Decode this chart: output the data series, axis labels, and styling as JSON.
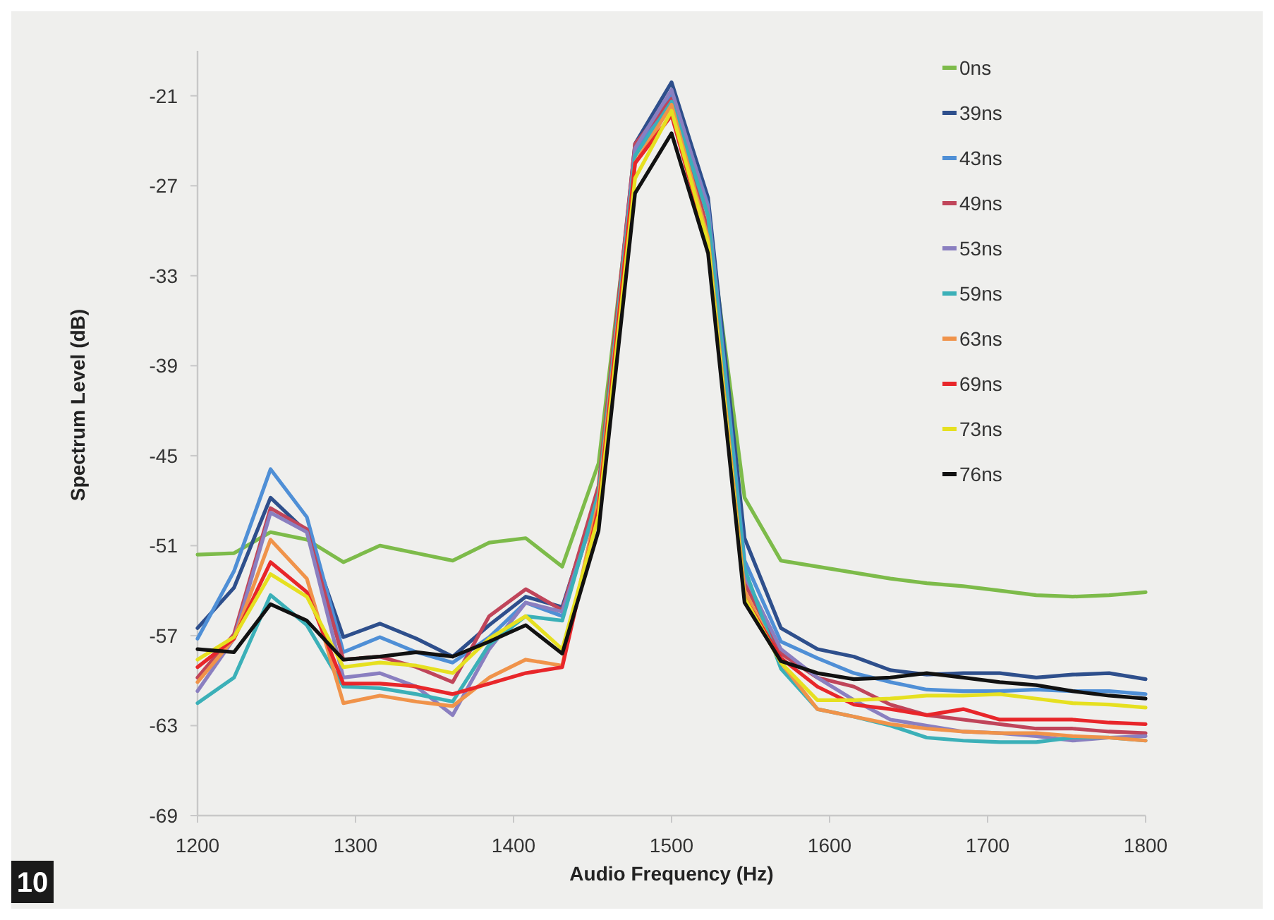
{
  "chart_data": {
    "type": "line",
    "ylabel": "Spectrum Level (dB)",
    "xlabel": "Audio Frequency (Hz)",
    "x": [
      1200,
      1223.1,
      1246.2,
      1269.2,
      1292.3,
      1315.4,
      1338.5,
      1361.5,
      1384.6,
      1407.7,
      1430.8,
      1453.8,
      1476.9,
      1500,
      1523.1,
      1546.2,
      1569.2,
      1592.3,
      1615.4,
      1638.5,
      1661.5,
      1684.6,
      1707.7,
      1730.8,
      1753.8,
      1776.9,
      1800
    ],
    "xlim": [
      1200,
      1800
    ],
    "xticks": [
      1200,
      1300,
      1400,
      1500,
      1600,
      1700,
      1800
    ],
    "ylim": [
      -69,
      -18
    ],
    "yticks": [
      -69,
      -63,
      -57,
      -51,
      -45,
      -39,
      -33,
      -27,
      -21
    ],
    "grid": false,
    "legend": "top right",
    "marker": "none",
    "line_style": "solid",
    "annotations": [
      "10"
    ],
    "series": [
      {
        "name": "0ns",
        "color": "#7dbb4a",
        "values": [
          -51.6,
          -51.5,
          -50.1,
          -50.6,
          -52.1,
          -51.0,
          -51.5,
          -52.0,
          -50.8,
          -50.5,
          -52.4,
          -45.5,
          -25.0,
          -21.0,
          -29.0,
          -47.8,
          -52.0,
          -52.4,
          -52.8,
          -53.2,
          -53.5,
          -53.7,
          -54.0,
          -54.3,
          -54.4,
          -54.3,
          -54.1
        ]
      },
      {
        "name": "39ns",
        "color": "#2e4f8c",
        "values": [
          -56.5,
          -53.8,
          -47.8,
          -50.1,
          -57.1,
          -56.2,
          -57.2,
          -58.4,
          -56.3,
          -54.4,
          -55.1,
          -47.5,
          -24.2,
          -20.1,
          -27.8,
          -50.5,
          -56.5,
          -57.9,
          -58.4,
          -59.3,
          -59.6,
          -59.5,
          -59.5,
          -59.8,
          -59.6,
          -59.5,
          -59.9
        ]
      },
      {
        "name": "43ns",
        "color": "#4f8fd6",
        "values": [
          -57.2,
          -52.7,
          -45.9,
          -49.1,
          -58.1,
          -57.1,
          -58.1,
          -58.8,
          -57.1,
          -54.8,
          -55.7,
          -47.8,
          -24.8,
          -20.9,
          -28.3,
          -52.0,
          -57.4,
          -58.5,
          -59.5,
          -60.1,
          -60.6,
          -60.7,
          -60.7,
          -60.6,
          -60.7,
          -60.7,
          -60.9
        ]
      },
      {
        "name": "49ns",
        "color": "#c0455a",
        "values": [
          -59.8,
          -56.9,
          -48.5,
          -49.9,
          -58.6,
          -58.4,
          -59.1,
          -60.1,
          -55.7,
          -53.9,
          -55.3,
          -47.0,
          -24.2,
          -21.2,
          -30.0,
          -53.5,
          -58.2,
          -59.8,
          -60.4,
          -61.6,
          -62.3,
          -62.6,
          -62.9,
          -63.2,
          -63.2,
          -63.4,
          -63.5
        ]
      },
      {
        "name": "53ns",
        "color": "#8a7fc0",
        "values": [
          -60.7,
          -57.2,
          -48.8,
          -50.1,
          -59.8,
          -59.5,
          -60.4,
          -62.3,
          -57.9,
          -54.8,
          -55.4,
          -48.0,
          -24.5,
          -20.6,
          -28.5,
          -53.0,
          -57.9,
          -59.8,
          -61.3,
          -62.6,
          -63.0,
          -63.4,
          -63.5,
          -63.7,
          -64.0,
          -63.8,
          -63.7
        ]
      },
      {
        "name": "59ns",
        "color": "#3bb0b8",
        "values": [
          -61.5,
          -59.8,
          -54.3,
          -56.3,
          -60.4,
          -60.5,
          -60.9,
          -61.4,
          -57.6,
          -55.7,
          -56.0,
          -47.5,
          -25.0,
          -21.4,
          -29.0,
          -52.5,
          -59.2,
          -61.9,
          -62.4,
          -63.0,
          -63.8,
          -64.0,
          -64.1,
          -64.1,
          -63.8,
          -63.8,
          -64.0
        ]
      },
      {
        "name": "63ns",
        "color": "#f0934a",
        "values": [
          -60.1,
          -57.2,
          -50.6,
          -53.2,
          -61.5,
          -61.0,
          -61.4,
          -61.7,
          -59.8,
          -58.6,
          -59.0,
          -48.0,
          -25.5,
          -21.6,
          -30.5,
          -54.0,
          -58.8,
          -61.9,
          -62.4,
          -62.9,
          -63.2,
          -63.4,
          -63.5,
          -63.5,
          -63.7,
          -63.8,
          -64.0
        ]
      },
      {
        "name": "69ns",
        "color": "#e8262a",
        "values": [
          -59.1,
          -57.2,
          -52.1,
          -54.1,
          -60.2,
          -60.2,
          -60.4,
          -60.9,
          -60.2,
          -59.5,
          -59.1,
          -48.5,
          -25.5,
          -22.3,
          -31.0,
          -54.5,
          -58.5,
          -60.4,
          -61.6,
          -61.9,
          -62.3,
          -61.9,
          -62.6,
          -62.6,
          -62.6,
          -62.8,
          -62.9
        ]
      },
      {
        "name": "73ns",
        "color": "#e6e020",
        "values": [
          -58.6,
          -57.1,
          -52.9,
          -54.4,
          -59.1,
          -58.8,
          -59.0,
          -59.5,
          -57.2,
          -55.7,
          -57.9,
          -49.0,
          -26.5,
          -22.0,
          -30.8,
          -54.5,
          -58.8,
          -61.3,
          -61.3,
          -61.2,
          -61.0,
          -61.0,
          -60.9,
          -61.2,
          -61.5,
          -61.6,
          -61.8
        ]
      },
      {
        "name": "76ns",
        "color": "#111111",
        "values": [
          -57.9,
          -58.1,
          -54.9,
          -56.0,
          -58.6,
          -58.4,
          -58.1,
          -58.4,
          -57.4,
          -56.3,
          -58.2,
          -50.0,
          -27.5,
          -23.5,
          -31.5,
          -54.8,
          -58.7,
          -59.5,
          -59.9,
          -59.8,
          -59.5,
          -59.8,
          -60.1,
          -60.3,
          -60.7,
          -61.0,
          -61.2
        ]
      }
    ]
  }
}
